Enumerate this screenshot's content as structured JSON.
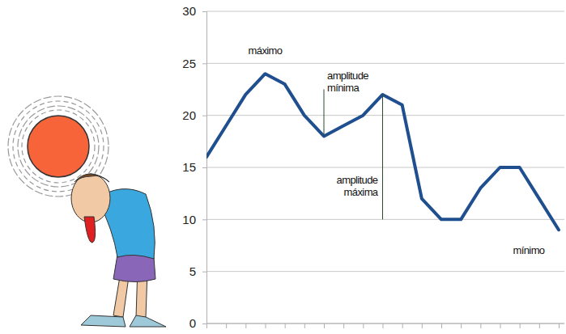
{
  "chart_data": {
    "type": "line",
    "categories": [
      null,
      null,
      null,
      null,
      null,
      null,
      null,
      null,
      null,
      null,
      null,
      null,
      null,
      null,
      null,
      null,
      null,
      null,
      null
    ],
    "values": [
      16,
      19,
      22,
      24,
      23,
      20,
      18,
      19,
      20,
      22,
      21,
      12,
      10,
      10,
      13,
      15,
      15,
      12,
      9
    ],
    "color": "#1f4f8f",
    "ylim": [
      0,
      30
    ],
    "yticks": [
      0,
      5,
      10,
      15,
      20,
      25,
      30
    ],
    "grid": true,
    "tick_labels": "y",
    "annotations": [
      "máximo",
      "amplitude mínima",
      "amplitude máxima",
      "mínimo"
    ]
  }
}
